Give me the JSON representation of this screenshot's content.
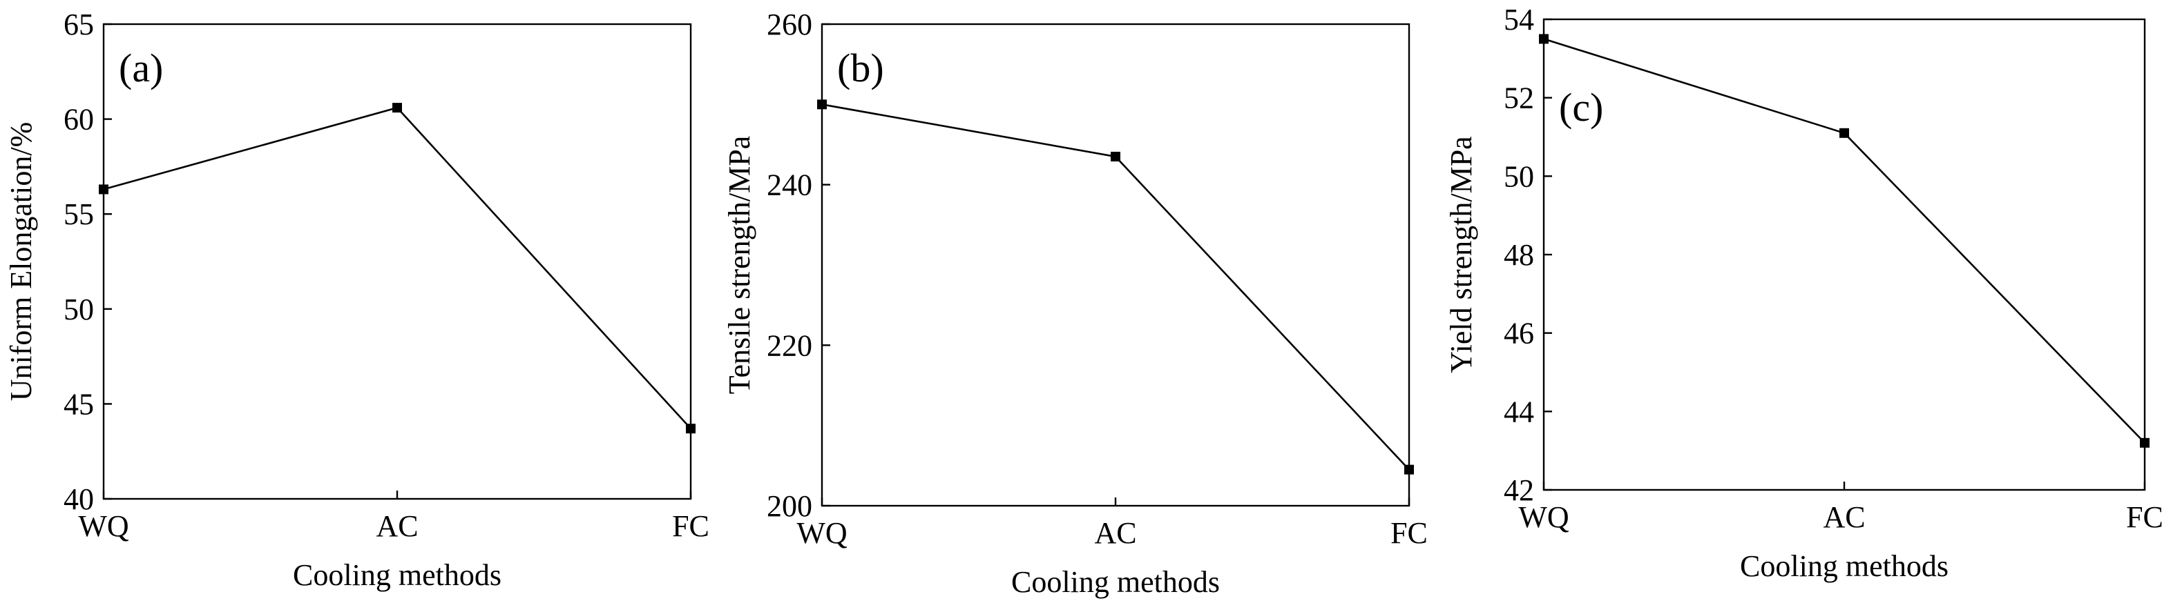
{
  "chart_data": [
    {
      "type": "line",
      "panel_label": "(a)",
      "categories": [
        "WQ",
        "AC",
        "FC"
      ],
      "values": [
        56.3,
        60.6,
        43.7
      ],
      "xlabel": "Cooling methods",
      "ylabel": "Uniform Elongation/%",
      "ylim": [
        40,
        65
      ],
      "yticks": [
        40,
        45,
        50,
        55,
        60,
        65
      ]
    },
    {
      "type": "line",
      "panel_label": "(b)",
      "categories": [
        "WQ",
        "AC",
        "FC"
      ],
      "values": [
        250,
        243.5,
        204.5
      ],
      "xlabel": "Cooling methods",
      "ylabel": "Tensile strength/MPa",
      "ylim": [
        200,
        260
      ],
      "yticks": [
        200,
        220,
        240,
        260
      ]
    },
    {
      "type": "line",
      "panel_label": "(c)",
      "categories": [
        "WQ",
        "AC",
        "FC"
      ],
      "values": [
        53.5,
        51.1,
        43.2
      ],
      "xlabel": "Cooling methods",
      "ylabel": "Yield strength/MPa",
      "ylim": [
        42,
        54
      ],
      "yticks": [
        42,
        44,
        46,
        48,
        50,
        52,
        54
      ]
    }
  ]
}
